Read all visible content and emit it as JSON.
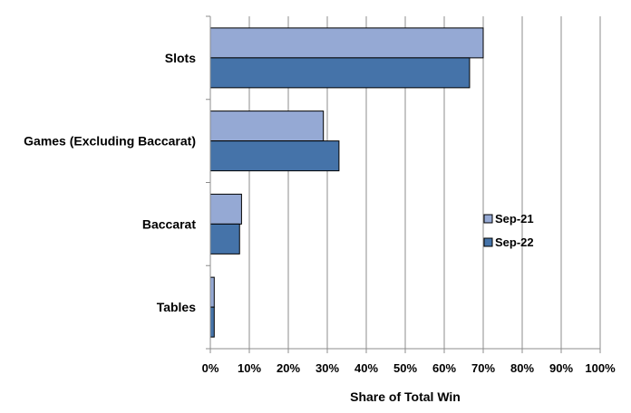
{
  "chart_data": {
    "type": "bar",
    "orientation": "horizontal",
    "categories": [
      "Slots",
      "Games (Excluding Baccarat)",
      "Baccarat",
      "Tables"
    ],
    "series": [
      {
        "name": "Sep-21",
        "values": [
          70,
          29,
          8,
          1
        ],
        "color": "#95A9D4"
      },
      {
        "name": "Sep-22",
        "values": [
          66.5,
          33,
          7.5,
          1
        ],
        "color": "#4573A9"
      }
    ],
    "x_ticks": [
      "0%",
      "10%",
      "20%",
      "30%",
      "40%",
      "50%",
      "60%",
      "70%",
      "80%",
      "90%",
      "100%"
    ],
    "xlim": [
      0,
      100
    ],
    "xlabel": "Share of Total Win",
    "ylabel": "",
    "title": "",
    "grid": "vertical",
    "legend_position": "right"
  }
}
